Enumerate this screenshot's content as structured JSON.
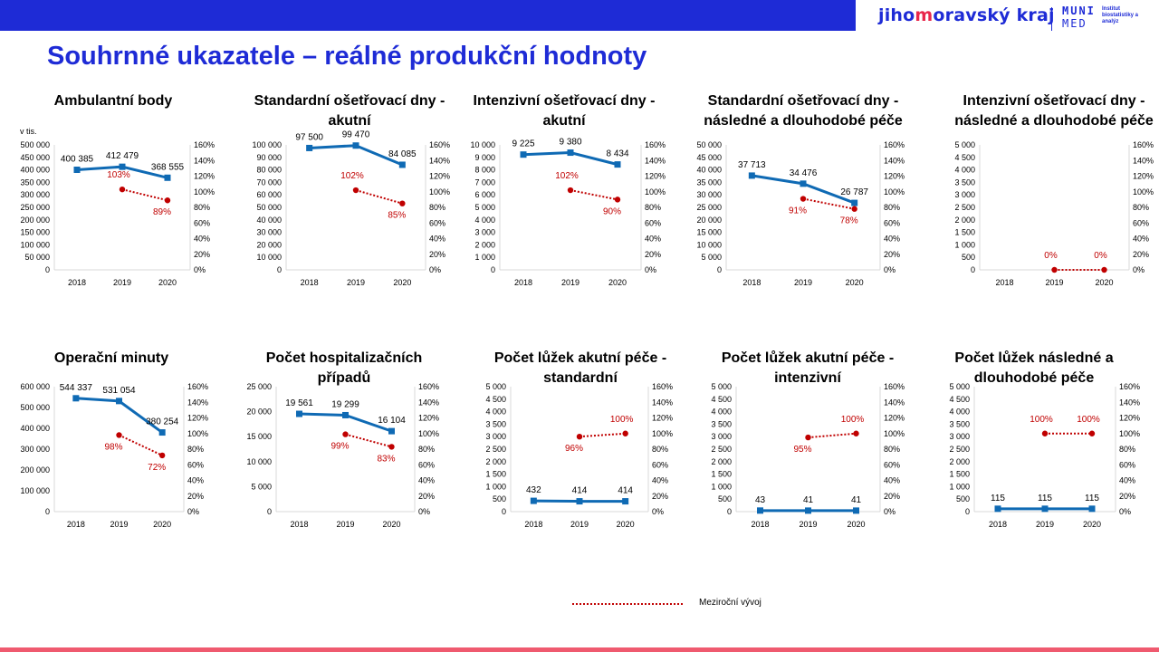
{
  "header": {
    "title": "Souhrnné ukazatele – reálné produkční hodnoty",
    "logo_jmk_pre": "jiho",
    "logo_jmk_accent": "m",
    "logo_jmk_post": "oravský kraj",
    "logo_muni_1": "MUNI",
    "logo_muni_2": "MED",
    "logo_muni_3": "Institut biostatistiky a analýz"
  },
  "colors": {
    "brand": "#1e2bd6",
    "series": "#0f6ab4",
    "change": "#c00000",
    "accent": "#e8274b"
  },
  "legend": {
    "label": "Meziroční vývoj"
  },
  "chart_data": [
    {
      "type": "line",
      "title": [
        "Ambulantní body"
      ],
      "unit_label": "v tis.",
      "categories": [
        "2018",
        "2019",
        "2020"
      ],
      "ylim": [
        0,
        500000
      ],
      "ystep": 50000,
      "y2lim": [
        0,
        160
      ],
      "y2step": 20,
      "series": [
        {
          "values": [
            400385,
            412479,
            368555
          ],
          "labels": [
            "400 385",
            "412 479",
            "368 555"
          ]
        },
        {
          "name": "Meziroční vývoj",
          "axis": "secondary",
          "values": [
            null,
            103,
            89
          ],
          "labels": [
            null,
            "103%",
            "89%"
          ]
        }
      ]
    },
    {
      "type": "line",
      "title": [
        "Standardní ošetřovací dny -",
        "akutní"
      ],
      "categories": [
        "2018",
        "2019",
        "2020"
      ],
      "ylim": [
        0,
        100000
      ],
      "ystep": 10000,
      "y2lim": [
        0,
        160
      ],
      "y2step": 20,
      "series": [
        {
          "values": [
            97500,
            99470,
            84085
          ],
          "labels": [
            "97 500",
            "99 470",
            "84 085"
          ]
        },
        {
          "name": "Meziroční vývoj",
          "axis": "secondary",
          "values": [
            null,
            102,
            85
          ],
          "labels": [
            null,
            "102%",
            "85%"
          ]
        }
      ]
    },
    {
      "type": "line",
      "title": [
        "Intenzivní ošetřovací dny -",
        "akutní"
      ],
      "categories": [
        "2018",
        "2019",
        "2020"
      ],
      "ylim": [
        0,
        10000
      ],
      "ystep": 1000,
      "y2lim": [
        0,
        160
      ],
      "y2step": 20,
      "series": [
        {
          "values": [
            9225,
            9380,
            8434
          ],
          "labels": [
            "9 225",
            "9 380",
            "8 434"
          ]
        },
        {
          "name": "Meziroční vývoj",
          "axis": "secondary",
          "values": [
            null,
            102,
            90
          ],
          "labels": [
            null,
            "102%",
            "90%"
          ]
        }
      ]
    },
    {
      "type": "line",
      "title": [
        "Standardní ošetřovací dny -",
        "následné a dlouhodobé péče"
      ],
      "categories": [
        "2018",
        "2019",
        "2020"
      ],
      "ylim": [
        0,
        50000
      ],
      "ystep": 5000,
      "y2lim": [
        0,
        160
      ],
      "y2step": 20,
      "series": [
        {
          "values": [
            37713,
            34476,
            26787
          ],
          "labels": [
            "37 713",
            "34 476",
            "26 787"
          ]
        },
        {
          "name": "Meziroční vývoj",
          "axis": "secondary",
          "values": [
            null,
            91,
            78
          ],
          "labels": [
            null,
            "91%",
            "78%"
          ]
        }
      ]
    },
    {
      "type": "line",
      "title": [
        "Intenzivní ošetřovací dny -",
        "následné a dlouhodobé péče"
      ],
      "categories": [
        "2018",
        "2019",
        "2020"
      ],
      "ylim": [
        0,
        5000
      ],
      "ystep": 500,
      "y2lim": [
        0,
        160
      ],
      "y2step": 20,
      "series": [
        {
          "values": [
            null,
            null,
            null
          ],
          "labels": [
            null,
            null,
            null
          ]
        },
        {
          "name": "Meziroční vývoj",
          "axis": "secondary",
          "values": [
            null,
            0,
            0
          ],
          "labels": [
            null,
            "0%",
            "0%"
          ]
        }
      ]
    },
    {
      "type": "line",
      "title": [
        "Operační minuty"
      ],
      "categories": [
        "2018",
        "2019",
        "2020"
      ],
      "ylim": [
        0,
        600000
      ],
      "ystep": 100000,
      "y2lim": [
        0,
        160
      ],
      "y2step": 20,
      "series": [
        {
          "values": [
            544337,
            531054,
            380254
          ],
          "labels": [
            "544 337",
            "531 054",
            "380 254"
          ]
        },
        {
          "name": "Meziroční vývoj",
          "axis": "secondary",
          "values": [
            null,
            98,
            72
          ],
          "labels": [
            null,
            "98%",
            "72%"
          ]
        }
      ]
    },
    {
      "type": "line",
      "title": [
        "Počet hospitalizačních",
        "případů"
      ],
      "categories": [
        "2018",
        "2019",
        "2020"
      ],
      "ylim": [
        0,
        25000
      ],
      "ystep": 5000,
      "y2lim": [
        0,
        160
      ],
      "y2step": 20,
      "series": [
        {
          "values": [
            19561,
            19299,
            16104
          ],
          "labels": [
            "19 561",
            "19 299",
            "16 104"
          ]
        },
        {
          "name": "Meziroční vývoj",
          "axis": "secondary",
          "values": [
            null,
            99,
            83
          ],
          "labels": [
            null,
            "99%",
            "83%"
          ]
        }
      ]
    },
    {
      "type": "line",
      "title": [
        "Počet lůžek akutní péče -",
        "standardní"
      ],
      "categories": [
        "2018",
        "2019",
        "2020"
      ],
      "ylim": [
        0,
        5000
      ],
      "ystep": 500,
      "y2lim": [
        0,
        160
      ],
      "y2step": 20,
      "series": [
        {
          "values": [
            432,
            414,
            414
          ],
          "labels": [
            "432",
            "414",
            "414"
          ]
        },
        {
          "name": "Meziroční vývoj",
          "axis": "secondary",
          "values": [
            null,
            96,
            100
          ],
          "labels": [
            null,
            "96%",
            "100%"
          ]
        }
      ]
    },
    {
      "type": "line",
      "title": [
        "Počet lůžek akutní péče -",
        "intenzivní"
      ],
      "categories": [
        "2018",
        "2019",
        "2020"
      ],
      "ylim": [
        0,
        5000
      ],
      "ystep": 500,
      "y2lim": [
        0,
        160
      ],
      "y2step": 20,
      "series": [
        {
          "values": [
            43,
            41,
            41
          ],
          "labels": [
            "43",
            "41",
            "41"
          ]
        },
        {
          "name": "Meziroční vývoj",
          "axis": "secondary",
          "values": [
            null,
            95,
            100
          ],
          "labels": [
            null,
            "95%",
            "100%"
          ]
        }
      ]
    },
    {
      "type": "line",
      "title": [
        "Počet lůžek následné a",
        "dlouhodobé péče"
      ],
      "categories": [
        "2018",
        "2019",
        "2020"
      ],
      "ylim": [
        0,
        5000
      ],
      "ystep": 500,
      "y2lim": [
        0,
        160
      ],
      "y2step": 20,
      "series": [
        {
          "values": [
            115,
            115,
            115
          ],
          "labels": [
            "115",
            "115",
            "115"
          ]
        },
        {
          "name": "Meziroční vývoj",
          "axis": "secondary",
          "values": [
            null,
            100,
            100
          ],
          "labels": [
            null,
            "100%",
            "100%"
          ]
        }
      ]
    }
  ]
}
